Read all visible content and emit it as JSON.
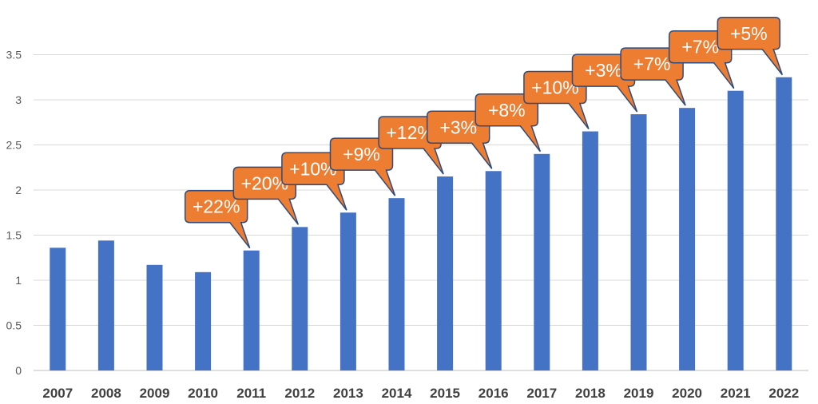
{
  "chart_data": {
    "type": "bar",
    "categories": [
      "2007",
      "2008",
      "2009",
      "2010",
      "2011",
      "2012",
      "2013",
      "2014",
      "2015",
      "2016",
      "2017",
      "2018",
      "2019",
      "2020",
      "2021",
      "2022"
    ],
    "values": [
      1.36,
      1.44,
      1.17,
      1.09,
      1.33,
      1.59,
      1.75,
      1.91,
      2.15,
      2.21,
      2.4,
      2.65,
      2.84,
      2.91,
      3.1,
      3.25
    ],
    "ylim": [
      0,
      3.75
    ],
    "yticks": [
      "0",
      "0.5",
      "1",
      "1.5",
      "2",
      "2.5",
      "3",
      "3.5"
    ],
    "grid": true,
    "bar_color": "#4472c4",
    "annotations": [
      {
        "category": "2011",
        "text": "+22%"
      },
      {
        "category": "2012",
        "text": "+20%"
      },
      {
        "category": "2013",
        "text": "+10%"
      },
      {
        "category": "2014",
        "text": "+9%"
      },
      {
        "category": "2015",
        "text": "+12%"
      },
      {
        "category": "2016",
        "text": "+3%"
      },
      {
        "category": "2017",
        "text": "+8%"
      },
      {
        "category": "2018",
        "text": "+10%"
      },
      {
        "category": "2019",
        "text": "+3%"
      },
      {
        "category": "2020",
        "text": "+7%"
      },
      {
        "category": "2021",
        "text": "+7%"
      },
      {
        "category": "2022",
        "text": "+5%"
      }
    ],
    "callout_fill": "#ed7d31",
    "callout_border": "#2f4b7c"
  }
}
